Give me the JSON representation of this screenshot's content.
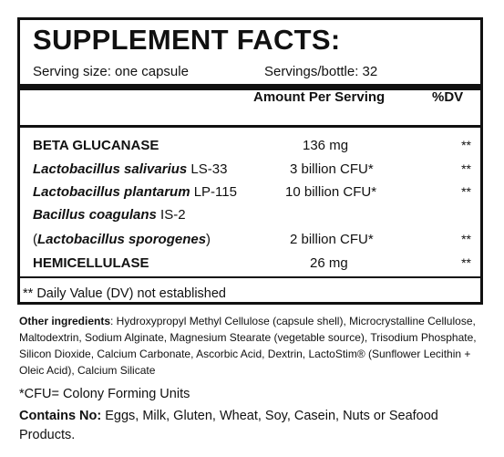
{
  "panel": {
    "title": "SUPPLEMENT FACTS:",
    "serving_size": "Serving size: one capsule",
    "servings_bottle": "Servings/bottle: 32",
    "header_amount": "Amount Per Serving",
    "header_dv": "%DV",
    "rows": [
      {
        "name_bold": "BETA GLUCANASE",
        "amount": "136 mg",
        "dv": "**"
      },
      {
        "name_italic": "Lactobacillus salivarius",
        "name_suffix": " LS-33",
        "amount": "3 billion CFU*",
        "dv": "**"
      },
      {
        "name_italic": "Lactobacillus plantarum",
        "name_suffix": " LP-115",
        "amount": "10 billion CFU*",
        "dv": "**"
      },
      {
        "name_italic": "Bacillus coagulans",
        "name_suffix": " IS-2"
      },
      {
        "name_prefix": "(",
        "name_italic": "Lactobacillus sporogenes",
        "name_suffix": ")",
        "amount": "2 billion CFU*",
        "dv": "**"
      },
      {
        "name_bold": "HEMICELLULASE",
        "amount": "26 mg",
        "dv": "**"
      }
    ],
    "footnote": "** Daily Value (DV) not established"
  },
  "other_ingredients": {
    "label": "Other ingredients",
    "text": ": Hydroxypropyl Methyl Cellulose (capsule shell), Microcrystalline Cellulose, Maltodextrin, Sodium Alginate, Magnesium Stearate (vegetable source), Trisodium Phosphate, Silicon Dioxide, Calcium Carbonate, Ascorbic Acid, Dextrin, LactoStim® (Sunflower Lecithin + Oleic Acid), Calcium Silicate"
  },
  "cfu_note": "*CFU= Colony Forming Units",
  "contains": {
    "label": "Contains No:",
    "text": " Eggs, Milk, Gluten, Wheat, Soy, Casein, Nuts or Seafood Products."
  }
}
